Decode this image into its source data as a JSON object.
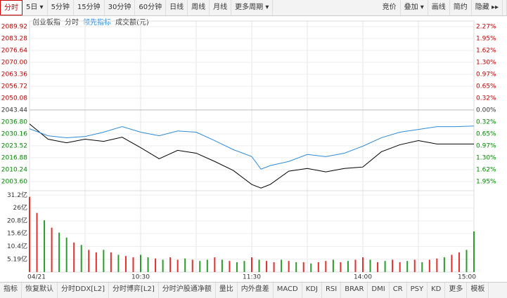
{
  "toolbar": {
    "left": [
      "分时",
      "5日 ▾",
      "5分钟",
      "15分钟",
      "30分钟",
      "60分钟",
      "日线",
      "周线",
      "月线",
      "更多周期 ▾"
    ],
    "right": [
      "竞价",
      "叠加 ▾",
      "画线",
      "简约",
      "隐藏 ▸▸"
    ]
  },
  "legend": [
    "创业板指",
    "分时",
    "领先指标",
    "成交额(元)"
  ],
  "tabs": [
    "指标",
    "恢复默认",
    "分时DDX[L2]",
    "分时博弈[L2]",
    "分时沪股通净额",
    "量比",
    "内外盘差",
    "MACD",
    "KDJ",
    "RSI",
    "BRAR",
    "DMI",
    "CR",
    "PSY",
    "KD",
    "更多",
    "模板"
  ],
  "chart_data": [
    {
      "type": "line",
      "xlim": [
        0,
        240
      ],
      "xticks": [
        {
          "value": 0,
          "label": "04/21"
        },
        {
          "value": 60,
          "label": "10:30"
        },
        {
          "value": 120,
          "label": "11:30"
        },
        {
          "value": 180,
          "label": "14:00"
        },
        {
          "value": 240,
          "label": "15:00"
        }
      ],
      "xgrid": [
        30,
        60,
        90,
        120,
        150,
        180,
        210
      ],
      "ylim": [
        1998.5,
        2093.0
      ],
      "yticks": [
        2089.92,
        2083.28,
        2076.64,
        {
          "value": 2070,
          "label": "2070.00"
        },
        2063.36,
        2056.72,
        2050.08,
        2043.44,
        {
          "value": 2036.8,
          "label": "2036.80"
        },
        2030.16,
        2023.52,
        2016.88,
        2010.24,
        {
          "value": 2003.6,
          "label": "2003.60"
        }
      ],
      "right_labels": [
        "2.27%",
        "1.95%",
        "1.62%",
        "1.30%",
        "0.97%",
        "0.65%",
        "0.32%",
        "0.00%",
        "0.32%",
        "0.65%",
        "0.97%",
        "1.30%",
        "1.62%",
        "1.95%"
      ],
      "label_colors": [
        "#c00000",
        "#c00000",
        "#c00000",
        "#c00000",
        "#c00000",
        "#c00000",
        "#c00000",
        "#333333",
        "#008800",
        "#008800",
        "#008800",
        "#008800",
        "#008800",
        "#008800"
      ],
      "x": [
        0,
        10,
        20,
        30,
        40,
        50,
        60,
        70,
        80,
        90,
        100,
        110,
        120,
        125,
        130,
        140,
        150,
        160,
        170,
        180,
        190,
        200,
        210,
        220,
        230,
        240
      ],
      "series": [
        {
          "name": "分时",
          "color": "#000000",
          "values": [
            2035.7,
            2027.2,
            2025.2,
            2027.2,
            2026.0,
            2028.3,
            2022.5,
            2016.3,
            2021.0,
            2019.4,
            2014.8,
            2009.8,
            2002.0,
            2000.0,
            2002.0,
            2009.4,
            2010.9,
            2009.0,
            2010.9,
            2011.7,
            2020.2,
            2024.1,
            2026.4,
            2024.5,
            2024.5,
            2024.5
          ]
        },
        {
          "name": "领先指标",
          "color": "#2e8bd8",
          "values": [
            2033.0,
            2029.1,
            2028.0,
            2028.7,
            2031.1,
            2034.2,
            2031.1,
            2029.1,
            2031.8,
            2031.1,
            2026.4,
            2021.4,
            2017.5,
            2010.5,
            2012.5,
            2014.8,
            2018.7,
            2017.5,
            2019.4,
            2023.3,
            2028.0,
            2031.1,
            2032.6,
            2034.2,
            2034.2,
            2034.5
          ]
        }
      ]
    },
    {
      "type": "bar",
      "xlim": [
        0,
        240
      ],
      "ylim": [
        0,
        33
      ],
      "yticks": [
        {
          "value": 31.2,
          "label": "31.2亿"
        },
        {
          "value": 26,
          "label": "26亿"
        },
        {
          "value": 20.8,
          "label": "20.8亿"
        },
        {
          "value": 15.6,
          "label": "15.6亿"
        },
        {
          "value": 10.4,
          "label": "10.4亿"
        },
        {
          "value": 5.19,
          "label": "5.19亿"
        }
      ],
      "x": [
        0,
        4,
        8,
        12,
        16,
        20,
        24,
        28,
        32,
        36,
        40,
        44,
        48,
        52,
        56,
        60,
        64,
        68,
        72,
        76,
        80,
        84,
        88,
        92,
        96,
        100,
        104,
        108,
        112,
        116,
        120,
        124,
        128,
        132,
        136,
        140,
        144,
        148,
        152,
        156,
        160,
        164,
        168,
        172,
        176,
        180,
        184,
        188,
        192,
        196,
        200,
        204,
        208,
        212,
        216,
        220,
        224,
        228,
        232,
        236,
        240
      ],
      "values": [
        30.5,
        24,
        21,
        18,
        16,
        14,
        12,
        11,
        9,
        8,
        9,
        8,
        7,
        6.5,
        6,
        7,
        6,
        5.5,
        5,
        6,
        5,
        5.5,
        5,
        4.5,
        5,
        6,
        5,
        4.5,
        4,
        4.5,
        6,
        5,
        4.5,
        4,
        5,
        4.5,
        4,
        4,
        3.5,
        4,
        4.5,
        5,
        4,
        4.5,
        5,
        6,
        5,
        4,
        4.5,
        5,
        4,
        4.5,
        5,
        4,
        5,
        5.5,
        6,
        7,
        8,
        9,
        16.5
      ],
      "colors": [
        "#e03030",
        "#e03030",
        "#2a9d2a",
        "#e03030",
        "#2a9d2a",
        "#2a9d2a",
        "#e03030",
        "#2a9d2a",
        "#e03030",
        "#e03030",
        "#2a9d2a",
        "#e03030",
        "#2a9d2a",
        "#e03030",
        "#e03030",
        "#2a9d2a",
        "#2a9d2a",
        "#e03030",
        "#2a9d2a",
        "#e03030",
        "#e03030",
        "#2a9d2a",
        "#e03030",
        "#2a9d2a",
        "#2a9d2a",
        "#e03030",
        "#2a9d2a",
        "#e03030",
        "#2a9d2a",
        "#2a9d2a",
        "#e03030",
        "#2a9d2a",
        "#e03030",
        "#e03030",
        "#2a9d2a",
        "#e03030",
        "#2a9d2a",
        "#e03030",
        "#2a9d2a",
        "#e03030",
        "#e03030",
        "#2a9d2a",
        "#e03030",
        "#2a9d2a",
        "#e03030",
        "#e03030",
        "#2a9d2a",
        "#e03030",
        "#2a9d2a",
        "#e03030",
        "#e03030",
        "#2a9d2a",
        "#e03030",
        "#2a9d2a",
        "#e03030",
        "#e03030",
        "#2a9d2a",
        "#e03030",
        "#e03030",
        "#2a9d2a",
        "#2a9d2a"
      ]
    }
  ]
}
